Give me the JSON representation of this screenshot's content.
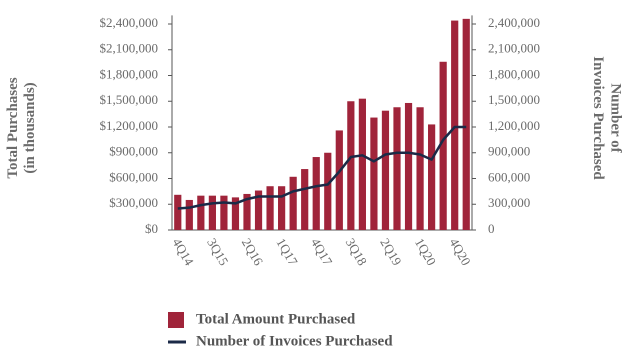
{
  "chart_data": {
    "type": "bar-line",
    "y_label": "Total Purchases (in thousands)",
    "y2_label": "Number of Invoices Purchased",
    "categories": [
      "4Q14",
      null,
      null,
      "3Q15",
      null,
      null,
      "2Q16",
      null,
      null,
      "1Q17",
      null,
      null,
      "4Q17",
      null,
      null,
      "3Q18",
      null,
      null,
      "2Q19",
      null,
      null,
      "1Q20",
      null,
      null,
      "4Q20",
      null
    ],
    "series": [
      {
        "name": "Total Amount Purchased",
        "type": "bar",
        "color": "#a0243a",
        "values": [
          410000,
          350000,
          400000,
          400000,
          400000,
          380000,
          420000,
          460000,
          510000,
          510000,
          620000,
          710000,
          850000,
          900000,
          1160000,
          1500000,
          1530000,
          1310000,
          1390000,
          1430000,
          1480000,
          1430000,
          1230000,
          1960000,
          2440000,
          2460000
        ]
      },
      {
        "name": "Number of Invoices Purchased",
        "type": "line",
        "axis": "y2",
        "color": "#1b2a47",
        "values": [
          250000,
          260000,
          290000,
          310000,
          320000,
          310000,
          360000,
          390000,
          390000,
          390000,
          450000,
          480000,
          510000,
          530000,
          680000,
          850000,
          870000,
          800000,
          880000,
          900000,
          900000,
          880000,
          820000,
          1050000,
          1200000,
          1200000
        ]
      }
    ],
    "ylim": [
      0,
      2500000
    ],
    "yticks": [
      {
        "value": 0,
        "label": "$0"
      },
      {
        "value": 300000,
        "label": "$300,000"
      },
      {
        "value": 600000,
        "label": "$600,000"
      },
      {
        "value": 900000,
        "label": "$900,000"
      },
      {
        "value": 1200000,
        "label": "$1,200,000"
      },
      {
        "value": 1500000,
        "label": "$1,500,000"
      },
      {
        "value": 1800000,
        "label": "$1,800,000"
      },
      {
        "value": 2100000,
        "label": "$2,100,000"
      },
      {
        "value": 2400000,
        "label": "$2,400,000"
      }
    ],
    "y2lim": [
      0,
      2500000
    ],
    "y2ticks": [
      0,
      {
        "value": 300000,
        "label": "300,000"
      },
      {
        "value": 600000,
        "label": "600,000"
      },
      {
        "value": 900000,
        "label": "900,000"
      },
      {
        "value": 1200000,
        "label": "1,200,000"
      },
      {
        "value": 1500000,
        "label": "1,500,000"
      },
      {
        "value": 1800000,
        "label": "1,800,000"
      },
      {
        "value": 2100000,
        "label": "2,100,000"
      },
      {
        "value": 2400000,
        "label": "2,400,000"
      }
    ],
    "grid": false
  }
}
